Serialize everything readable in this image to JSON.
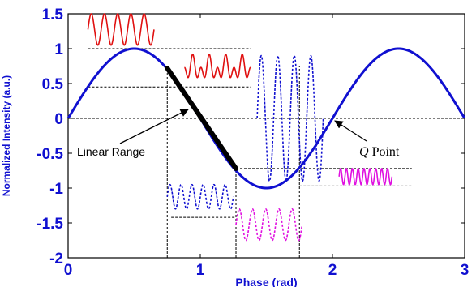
{
  "chart_data": {
    "type": "line",
    "xlabel": "Phase (rad)",
    "ylabel": "Normalized Intensity (a.u.)",
    "xlim": [
      0,
      3
    ],
    "ylim": [
      -2,
      1.5
    ],
    "x_ticks": [
      "0",
      "1",
      "2",
      "3"
    ],
    "y_ticks": [
      "1.5",
      "1",
      "0.5",
      "0",
      "-0.5",
      "-1",
      "-1.5",
      "-2"
    ],
    "grid": false,
    "series": [
      {
        "function": "sin(pi * x)",
        "x_range": [
          0,
          3
        ],
        "color": "#1010d0",
        "style": "solid"
      }
    ],
    "linear_range_segment": {
      "x": [
        0.75,
        1.27
      ],
      "y": [
        0.72,
        -0.72
      ],
      "color": "#000000"
    },
    "annotations": {
      "linear_range_label": "Linear Range",
      "q_point_italic": "Q",
      "q_point_rest": " Point",
      "q_point": {
        "x": 2.0,
        "y": 0
      }
    },
    "inset_waveforms": [
      {
        "color": "#e01010",
        "style": "solid",
        "x": [
          0.15,
          0.65
        ],
        "y": [
          1.05,
          1.5
        ],
        "cycles": 5,
        "kind": "sine"
      },
      {
        "color": "#e01010",
        "style": "solid",
        "x": [
          0.88,
          1.38
        ],
        "y": [
          0.5,
          0.92
        ],
        "cycles": 4,
        "kind": "double-peak"
      },
      {
        "color": "#1010d0",
        "style": "dashed",
        "x": [
          1.43,
          1.93
        ],
        "y": [
          -0.9,
          0.9
        ],
        "cycles": 4,
        "kind": "sine"
      },
      {
        "color": "#1010d0",
        "style": "dashed",
        "x": [
          0.75,
          1.25
        ],
        "y": [
          -1.3,
          -0.95
        ],
        "cycles": 6,
        "kind": "sine"
      },
      {
        "color": "#e010e0",
        "style": "dashed",
        "x": [
          1.27,
          1.77
        ],
        "y": [
          -1.75,
          -1.3
        ],
        "cycles": 5,
        "kind": "sine"
      },
      {
        "color": "#e010e0",
        "style": "solid",
        "x": [
          2.05,
          2.45
        ],
        "y": [
          -0.95,
          -0.72
        ],
        "cycles": 9,
        "kind": "sine"
      }
    ],
    "reference_lines": {
      "horizontal": [
        {
          "y": 1.0,
          "x": [
            0.15,
            1.38
          ]
        },
        {
          "y": 0.75,
          "x": [
            0.75,
            1.85
          ]
        },
        {
          "y": 0.45,
          "x": [
            0.15,
            1.38
          ]
        },
        {
          "y": 0,
          "x": [
            0,
            3
          ]
        },
        {
          "y": -0.72,
          "x": [
            1.27,
            2.6
          ]
        },
        {
          "y": -0.97,
          "x": [
            1.75,
            2.6
          ]
        },
        {
          "y": -1.42,
          "x": [
            0.78,
            1.27
          ]
        }
      ],
      "vertical": [
        {
          "x": 0.75,
          "y": [
            -2,
            0.75
          ]
        },
        {
          "x": 1.27,
          "y": [
            -2,
            -0.72
          ]
        },
        {
          "x": 1.75,
          "y": [
            -2,
            0.75
          ]
        }
      ]
    }
  }
}
